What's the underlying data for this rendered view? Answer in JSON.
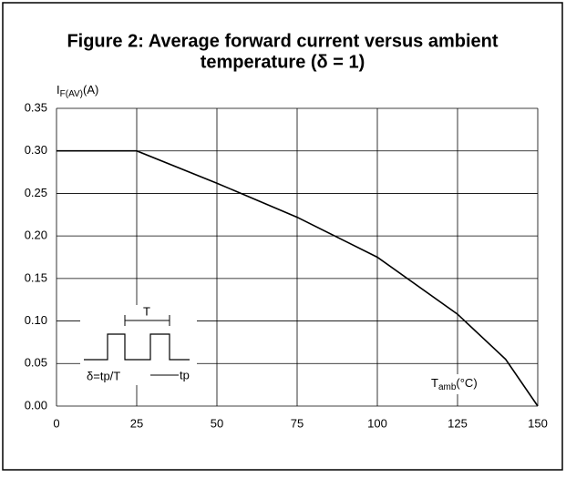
{
  "chart_data": {
    "type": "line",
    "title": "Figure 2: Average forward current versus ambient",
    "subtitle": "temperature (δ = 1)",
    "y_label": {
      "main": "I",
      "sub": "F(AV)",
      "unit": "(A)"
    },
    "x_label": {
      "main": "T",
      "sub": "amb",
      "unit": "(°C)"
    },
    "annotations": {
      "period": "T",
      "duty": "δ=tp/T",
      "pulse": "tp"
    },
    "x": [
      0,
      25,
      50,
      75,
      100,
      125,
      140,
      150
    ],
    "series": [
      {
        "name": "IF(AV)",
        "color": "#000000",
        "values": [
          0.3,
          0.3,
          0.262,
          0.222,
          0.175,
          0.108,
          0.055,
          0
        ]
      }
    ],
    "xlim": [
      0,
      150
    ],
    "xticks": [
      0,
      25,
      50,
      75,
      100,
      125,
      150
    ],
    "ylim": [
      0,
      0.35
    ],
    "yticks": [
      {
        "value": 0,
        "label": "0.00"
      },
      {
        "value": 0.05,
        "label": "0.05"
      },
      {
        "value": 0.1,
        "label": "0.10"
      },
      {
        "value": 0.15,
        "label": "0.15"
      },
      {
        "value": 0.2,
        "label": "0.20"
      },
      {
        "value": 0.25,
        "label": "0.25"
      },
      {
        "value": 0.3,
        "label": "0.30"
      },
      {
        "value": 0.35,
        "label": "0.35"
      }
    ],
    "grid": true
  }
}
